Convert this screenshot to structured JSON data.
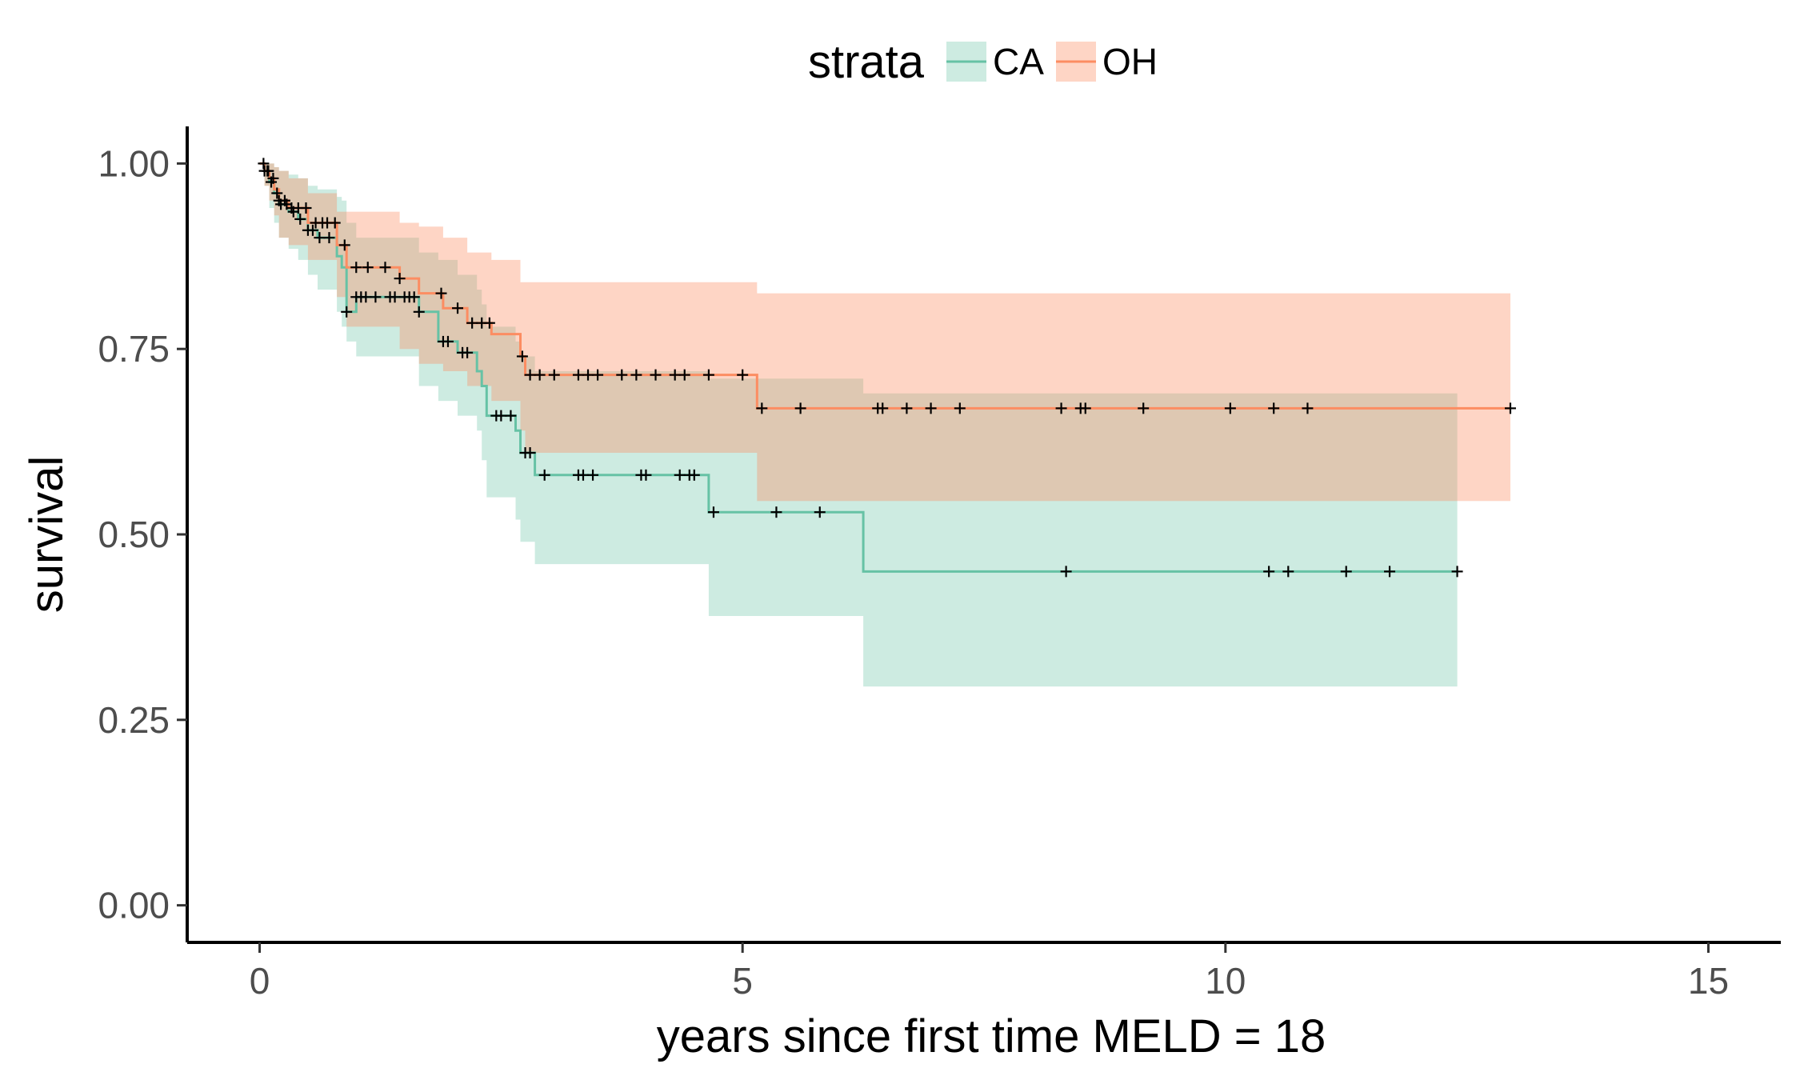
{
  "chart_data": {
    "type": "line",
    "subtype": "kaplan-meier survival curve with confidence bands",
    "xlabel": "years since first time MELD = 18",
    "ylabel": "survival",
    "xlim": [
      -0.75,
      15.75
    ],
    "ylim": [
      -0.05,
      1.05
    ],
    "x_ticks": [
      {
        "value": 0,
        "label": "0"
      },
      {
        "value": 5,
        "label": "5"
      },
      {
        "value": 10,
        "label": "10"
      },
      {
        "value": 15,
        "label": "15"
      }
    ],
    "y_ticks": [
      {
        "value": 0,
        "label": "0.00"
      },
      {
        "value": 0.25,
        "label": "0.25"
      },
      {
        "value": 0.5,
        "label": "0.50"
      },
      {
        "value": 0.75,
        "label": "0.75"
      },
      {
        "value": 1,
        "label": "1.00"
      }
    ],
    "legend": {
      "title": "strata",
      "position": "top",
      "entries": [
        "CA",
        "OH"
      ]
    },
    "grid": false,
    "series": [
      {
        "name": "CA",
        "line_color": "#66c2a5",
        "band_color": "#66c2a5",
        "band_opacity": 0.33,
        "steps": [
          {
            "x": 0.0,
            "y": 1.0,
            "lo": 1.0,
            "hi": 1.0
          },
          {
            "x": 0.05,
            "y": 0.99,
            "lo": 0.97,
            "hi": 1.0
          },
          {
            "x": 0.1,
            "y": 0.975,
            "lo": 0.94,
            "hi": 1.0
          },
          {
            "x": 0.15,
            "y": 0.96,
            "lo": 0.92,
            "hi": 0.995
          },
          {
            "x": 0.2,
            "y": 0.945,
            "lo": 0.9,
            "hi": 0.99
          },
          {
            "x": 0.3,
            "y": 0.935,
            "lo": 0.885,
            "hi": 0.985
          },
          {
            "x": 0.4,
            "y": 0.925,
            "lo": 0.87,
            "hi": 0.98
          },
          {
            "x": 0.5,
            "y": 0.91,
            "lo": 0.85,
            "hi": 0.97
          },
          {
            "x": 0.6,
            "y": 0.9,
            "lo": 0.83,
            "hi": 0.965
          },
          {
            "x": 0.8,
            "y": 0.875,
            "lo": 0.8,
            "hi": 0.955
          },
          {
            "x": 0.85,
            "y": 0.86,
            "lo": 0.78,
            "hi": 0.95
          },
          {
            "x": 0.9,
            "y": 0.8,
            "lo": 0.76,
            "hi": 0.92
          },
          {
            "x": 1.0,
            "y": 0.82,
            "lo": 0.74,
            "hi": 0.9
          },
          {
            "x": 1.65,
            "y": 0.8,
            "lo": 0.74,
            "hi": 0.89
          },
          {
            "x": 1.65,
            "y": 0.8,
            "lo": 0.7,
            "hi": 0.88
          },
          {
            "x": 1.85,
            "y": 0.76,
            "lo": 0.68,
            "hi": 0.87
          },
          {
            "x": 2.05,
            "y": 0.745,
            "lo": 0.66,
            "hi": 0.85
          },
          {
            "x": 2.25,
            "y": 0.72,
            "lo": 0.64,
            "hi": 0.83
          },
          {
            "x": 2.3,
            "y": 0.7,
            "lo": 0.6,
            "hi": 0.81
          },
          {
            "x": 2.35,
            "y": 0.66,
            "lo": 0.55,
            "hi": 0.78
          },
          {
            "x": 2.65,
            "y": 0.64,
            "lo": 0.52,
            "hi": 0.76
          },
          {
            "x": 2.7,
            "y": 0.61,
            "lo": 0.49,
            "hi": 0.74
          },
          {
            "x": 2.85,
            "y": 0.58,
            "lo": 0.46,
            "hi": 0.72
          },
          {
            "x": 4.65,
            "y": 0.53,
            "lo": 0.39,
            "hi": 0.71
          },
          {
            "x": 6.25,
            "y": 0.45,
            "lo": 0.295,
            "hi": 0.69
          },
          {
            "x": 12.4,
            "y": 0.45,
            "lo": 0.295,
            "hi": 0.69
          }
        ],
        "censor_times": [
          0.05,
          0.08,
          0.12,
          0.18,
          0.22,
          0.28,
          0.35,
          0.42,
          0.5,
          0.55,
          0.62,
          0.72,
          0.9,
          1.0,
          1.05,
          1.1,
          1.2,
          1.35,
          1.4,
          1.5,
          1.55,
          1.6,
          1.65,
          1.9,
          1.95,
          2.1,
          2.15,
          2.45,
          2.5,
          2.6,
          2.75,
          2.8,
          2.95,
          3.3,
          3.35,
          3.45,
          3.95,
          4.0,
          4.35,
          4.45,
          4.5,
          4.7,
          5.35,
          5.8,
          8.35,
          10.45,
          10.65,
          11.25,
          11.7,
          12.4
        ]
      },
      {
        "name": "OH",
        "line_color": "#fc8d62",
        "band_color": "#fc8d62",
        "band_opacity": 0.37,
        "steps": [
          {
            "x": 0.0,
            "y": 1.0,
            "lo": 1.0,
            "hi": 1.0
          },
          {
            "x": 0.05,
            "y": 0.99,
            "lo": 0.97,
            "hi": 1.0
          },
          {
            "x": 0.1,
            "y": 0.98,
            "lo": 0.95,
            "hi": 1.0
          },
          {
            "x": 0.15,
            "y": 0.965,
            "lo": 0.93,
            "hi": 0.995
          },
          {
            "x": 0.2,
            "y": 0.95,
            "lo": 0.9,
            "hi": 0.99
          },
          {
            "x": 0.3,
            "y": 0.94,
            "lo": 0.89,
            "hi": 0.98
          },
          {
            "x": 0.5,
            "y": 0.92,
            "lo": 0.87,
            "hi": 0.96
          },
          {
            "x": 0.8,
            "y": 0.89,
            "lo": 0.82,
            "hi": 0.935
          },
          {
            "x": 0.9,
            "y": 0.86,
            "lo": 0.78,
            "hi": 0.935
          },
          {
            "x": 1.45,
            "y": 0.845,
            "lo": 0.76,
            "hi": 0.93
          },
          {
            "x": 1.45,
            "y": 0.845,
            "lo": 0.75,
            "hi": 0.92
          },
          {
            "x": 1.65,
            "y": 0.825,
            "lo": 0.73,
            "hi": 0.915
          },
          {
            "x": 1.9,
            "y": 0.805,
            "lo": 0.72,
            "hi": 0.9
          },
          {
            "x": 2.15,
            "y": 0.785,
            "lo": 0.7,
            "hi": 0.88
          },
          {
            "x": 2.4,
            "y": 0.77,
            "lo": 0.68,
            "hi": 0.87
          },
          {
            "x": 2.7,
            "y": 0.74,
            "lo": 0.64,
            "hi": 0.84
          },
          {
            "x": 2.75,
            "y": 0.715,
            "lo": 0.61,
            "hi": 0.84
          },
          {
            "x": 4.65,
            "y": 0.715,
            "lo": 0.61,
            "hi": 0.84
          },
          {
            "x": 5.15,
            "y": 0.67,
            "lo": 0.545,
            "hi": 0.825
          },
          {
            "x": 12.95,
            "y": 0.67,
            "lo": 0.545,
            "hi": 0.825
          }
        ],
        "censor_times": [
          0.04,
          0.09,
          0.14,
          0.2,
          0.26,
          0.33,
          0.4,
          0.48,
          0.58,
          0.65,
          0.7,
          0.78,
          0.88,
          1.0,
          1.12,
          1.3,
          1.45,
          1.88,
          2.05,
          2.2,
          2.3,
          2.38,
          2.72,
          2.8,
          2.9,
          3.05,
          3.3,
          3.4,
          3.5,
          3.75,
          3.9,
          4.1,
          4.3,
          4.4,
          4.65,
          5.0,
          5.2,
          5.6,
          6.4,
          6.45,
          6.7,
          6.95,
          7.25,
          8.3,
          8.5,
          8.55,
          9.15,
          10.05,
          10.5,
          10.85,
          12.95
        ]
      }
    ]
  }
}
